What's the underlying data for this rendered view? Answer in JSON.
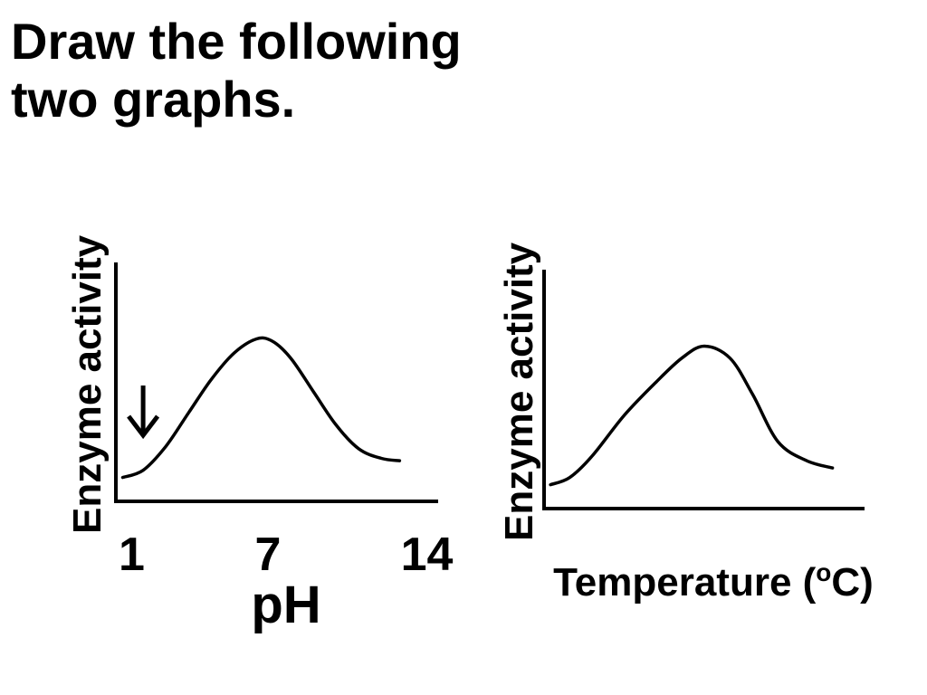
{
  "title": {
    "line1": "Draw the following",
    "line2": "two graphs."
  },
  "chart_data": [
    {
      "type": "line",
      "ylabel": "Enzyme activity",
      "xlabel": "pH",
      "xticks": [
        "1",
        "7",
        "14"
      ],
      "annotations": [
        {
          "type": "arrow",
          "direction": "down",
          "points_at_x": 1.5
        }
      ],
      "xlim": [
        0.3,
        14.5
      ],
      "ylim": [
        0,
        1
      ],
      "series": [
        {
          "x": [
            0.6,
            1.5,
            2.5,
            3.5,
            4.5,
            5.5,
            6.5,
            7.2,
            8.0,
            9.0,
            10.0,
            11.0,
            12.0,
            12.8
          ],
          "values": [
            0.1,
            0.13,
            0.23,
            0.37,
            0.51,
            0.62,
            0.68,
            0.67,
            0.6,
            0.46,
            0.32,
            0.22,
            0.18,
            0.17
          ]
        }
      ]
    },
    {
      "type": "line",
      "ylabel": "Enzyme activity",
      "xlabel": "Temperature (",
      "xlabel_sup": "o",
      "xlabel_end": "C)",
      "xlim": [
        0,
        10
      ],
      "ylim": [
        0,
        1
      ],
      "series": [
        {
          "x": [
            0.2,
            0.8,
            1.5,
            2.5,
            3.5,
            4.3,
            5.0,
            5.8,
            6.5,
            7.3,
            8.2,
            9.0
          ],
          "values": [
            0.1,
            0.13,
            0.22,
            0.39,
            0.53,
            0.63,
            0.68,
            0.63,
            0.48,
            0.28,
            0.2,
            0.17
          ]
        }
      ]
    }
  ]
}
